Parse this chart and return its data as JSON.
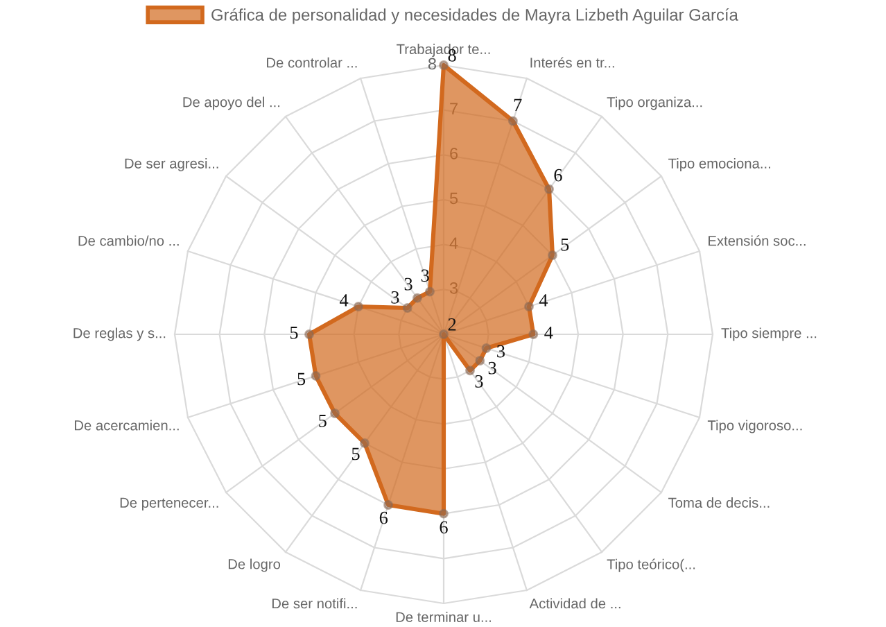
{
  "chart_data": {
    "type": "radar",
    "categories": [
      "Trabajador te...",
      "Interés en tr...",
      "Tipo organiza...",
      "Tipo emociona...",
      "Extensión soc...",
      "Tipo siempre ...",
      "Tipo vigoroso...",
      "Toma de decis...",
      "Tipo teórico(...",
      "Actividad de ...",
      "De terminar u...",
      "De ser notifi...",
      "De logro",
      "De pertenecer...",
      "De acercamien...",
      "De reglas y s...",
      "De cambio/no ...",
      "De ser agresi...",
      "De apoyo del ...",
      "De controlar ..."
    ],
    "series": [
      {
        "name": "Gráfica de personalidad y necesidades de Mayra Lizbeth Aguilar García",
        "color": "#d2691e",
        "values": [
          8,
          7,
          6,
          5,
          4,
          4,
          3,
          3,
          3,
          2,
          6,
          6,
          5,
          5,
          5,
          5,
          4,
          3,
          3,
          3
        ]
      }
    ],
    "ylim": [
      2,
      8
    ],
    "yticks": [
      3,
      4,
      5,
      6,
      7,
      8
    ],
    "grid": true,
    "legend": "top",
    "marker": "circle",
    "data_labels": true
  }
}
